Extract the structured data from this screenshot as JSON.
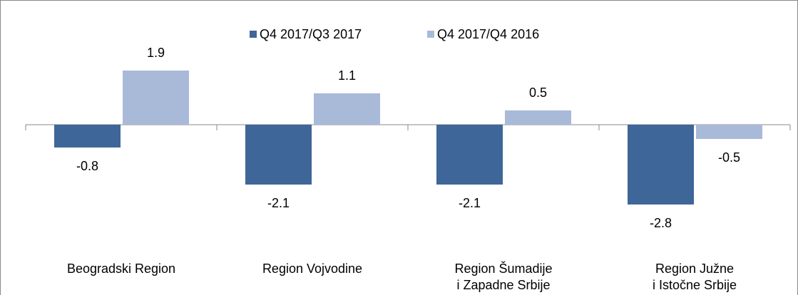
{
  "chart_data": {
    "type": "bar",
    "categories": [
      "Beogradski Region",
      "Region Vojvodine",
      "Region Šumadije\ni  Zapadne Srbije",
      "Region Južne\ni Istočne Srbije"
    ],
    "series": [
      {
        "name": "Q4 2017/Q3 2017",
        "color": "#3f6698",
        "values": [
          -0.8,
          -2.1,
          -2.1,
          -2.8
        ]
      },
      {
        "name": "Q4 2017/Q4 2016",
        "color": "#a9b9d8",
        "values": [
          1.9,
          1.1,
          0.5,
          -0.5
        ]
      }
    ],
    "legend": "top"
  }
}
